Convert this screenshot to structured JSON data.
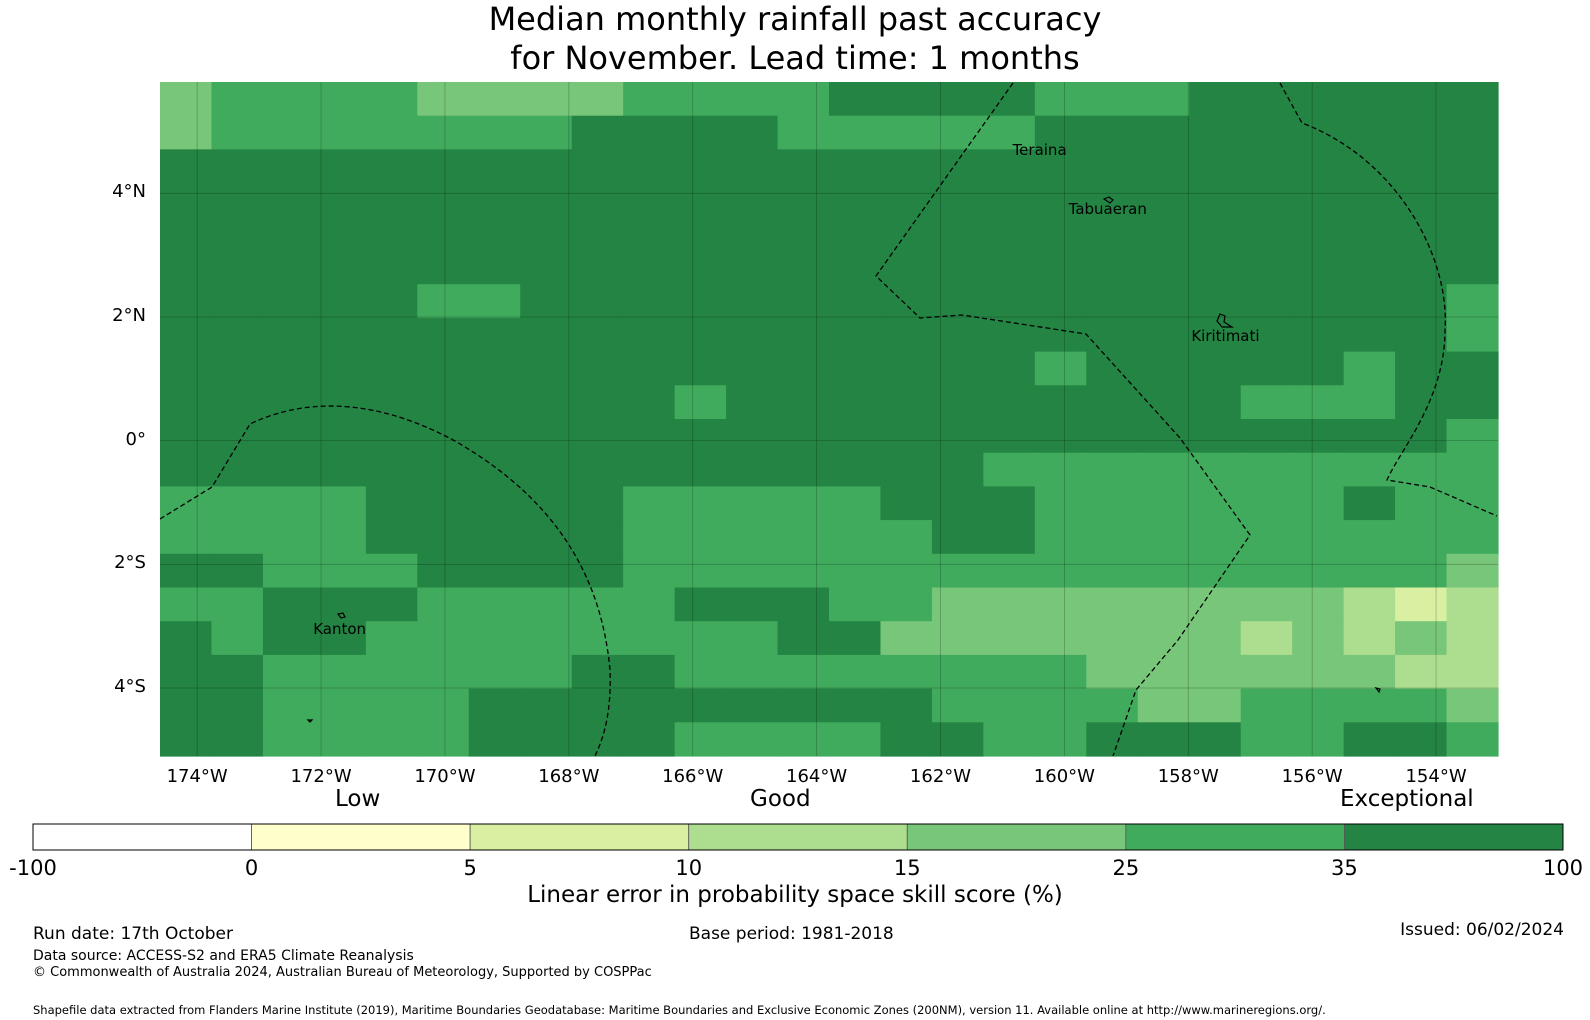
{
  "title": {
    "line1": "Median monthly rainfall past accuracy",
    "line2": "for November. Lead time: 1 months"
  },
  "map": {
    "lon_range": [
      -174.6,
      -153.0
    ],
    "lat_range": [
      -5.1,
      5.8
    ],
    "lat_ticks": [
      {
        "value": 4,
        "label": "4°N"
      },
      {
        "value": 2,
        "label": "2°N"
      },
      {
        "value": 0,
        "label": "0°"
      },
      {
        "value": -2,
        "label": "2°S"
      },
      {
        "value": -4,
        "label": "4°S"
      }
    ],
    "lon_ticks": [
      {
        "value": -174,
        "label": "174°W"
      },
      {
        "value": -172,
        "label": "172°W"
      },
      {
        "value": -170,
        "label": "170°W"
      },
      {
        "value": -168,
        "label": "168°W"
      },
      {
        "value": -166,
        "label": "166°W"
      },
      {
        "value": -164,
        "label": "164°W"
      },
      {
        "value": -162,
        "label": "162°W"
      },
      {
        "value": -160,
        "label": "160°W"
      },
      {
        "value": -158,
        "label": "158°W"
      },
      {
        "value": -156,
        "label": "156°W"
      },
      {
        "value": -154,
        "label": "154°W"
      }
    ],
    "places": [
      {
        "name": "Teraina",
        "lon": -160.4,
        "lat": 4.7
      },
      {
        "name": "Tabuaeran",
        "lon": -159.3,
        "lat": 3.75
      },
      {
        "name": "Kiritimati",
        "lon": -157.4,
        "lat": 1.7
      },
      {
        "name": "Kanton",
        "lon": -171.7,
        "lat": -3.05
      }
    ],
    "grid_note_levels": "cell values are color class indices 1-7 matching legend bins"
  },
  "legend": {
    "categories": [
      "Low",
      "Good",
      "Exceptional"
    ],
    "boundaries": [
      "-100",
      "0",
      "5",
      "10",
      "15",
      "25",
      "35",
      "100"
    ],
    "colors": [
      "#ffffff",
      "#ffffcc",
      "#d9f0a3",
      "#addd8e",
      "#78c679",
      "#41ab5d",
      "#238443"
    ],
    "label": "Linear error in probability space skill score (%)"
  },
  "footer": {
    "run_date": "Run date: 17th October",
    "base_period": "Base period: 1981-2018",
    "issued": "Issued: 06/02/2024",
    "data_source": "Data source: ACCESS-S2 and ERA5 Climate Reanalysis",
    "copyright": "© Commonwealth of Australia 2024, Australian Bureau of Meteorology, Supported by COSPPac",
    "shapefile": "Shapefile data extracted from Flanders Marine Institute (2019), Maritime Boundaries Geodatabase: Maritime Boundaries and Exclusive Economic Zones (200NM), version 11. Available online at http://www.marineregions.org/."
  }
}
